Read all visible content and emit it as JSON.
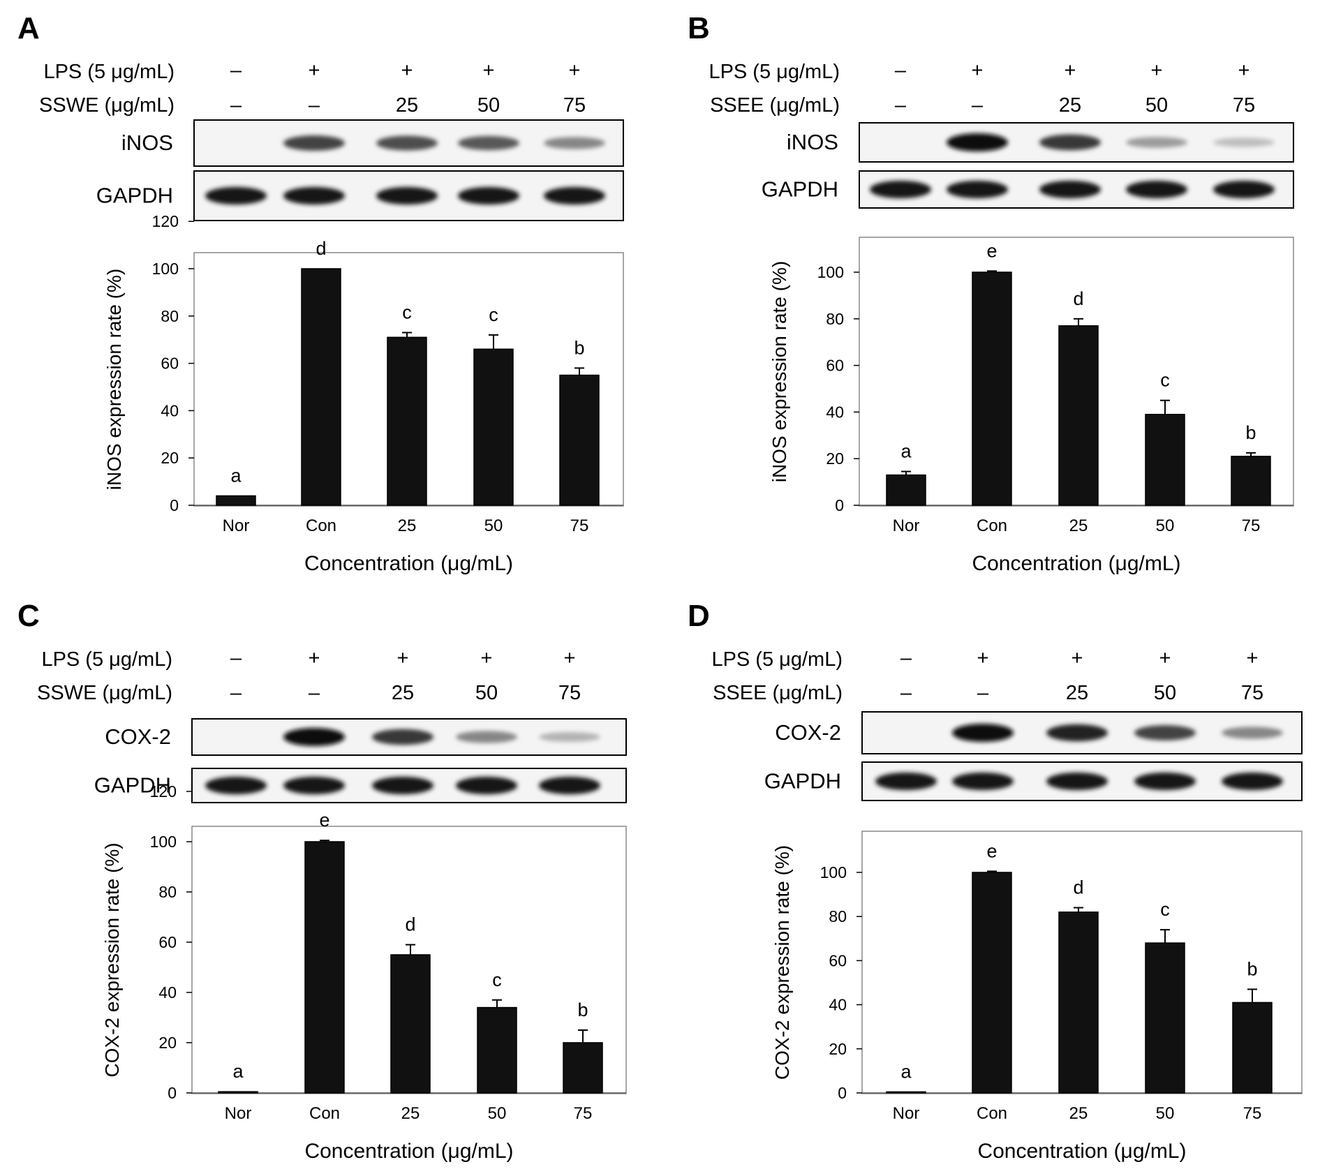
{
  "figure": {
    "panels": [
      {
        "letter": "A",
        "lps_label": "LPS (5 μg/mL)",
        "lps_signs": [
          "–",
          "+",
          "+",
          "+",
          "+"
        ],
        "extract_label": "SSWE (μg/mL)",
        "extract_signs": [
          "–",
          "–",
          "25",
          "50",
          "75"
        ],
        "blots": [
          {
            "name": "iNOS",
            "intensity": [
              0.0,
              0.75,
              0.7,
              0.65,
              0.45
            ]
          },
          {
            "name": "GAPDH",
            "intensity": [
              0.95,
              0.95,
              0.95,
              0.95,
              0.95
            ]
          }
        ]
      },
      {
        "letter": "B",
        "lps_label": "LPS (5 μg/mL)",
        "lps_signs": [
          "–",
          "+",
          "+",
          "+",
          "+"
        ],
        "extract_label": "SSEE (μg/mL)",
        "extract_signs": [
          "–",
          "–",
          "25",
          "50",
          "75"
        ],
        "blots": [
          {
            "name": "iNOS",
            "intensity": [
              0.0,
              1.0,
              0.8,
              0.35,
              0.2
            ]
          },
          {
            "name": "GAPDH",
            "intensity": [
              0.95,
              0.95,
              0.95,
              0.95,
              0.95
            ]
          }
        ]
      },
      {
        "letter": "C",
        "lps_label": "LPS (5 μg/mL)",
        "lps_signs": [
          "–",
          "+",
          "+",
          "+",
          "+"
        ],
        "extract_label": "SSWE (μg/mL)",
        "extract_signs": [
          "–",
          "–",
          "25",
          "50",
          "75"
        ],
        "blots": [
          {
            "name": "COX-2",
            "intensity": [
              0.0,
              1.0,
              0.8,
              0.45,
              0.25
            ]
          },
          {
            "name": "GAPDH",
            "intensity": [
              0.95,
              0.95,
              0.95,
              0.95,
              0.95
            ]
          }
        ]
      },
      {
        "letter": "D",
        "lps_label": "LPS (5 μg/mL)",
        "lps_signs": [
          "–",
          "+",
          "+",
          "+",
          "+"
        ],
        "extract_label": "SSEE (μg/mL)",
        "extract_signs": [
          "–",
          "–",
          "25",
          "50",
          "75"
        ],
        "blots": [
          {
            "name": "COX-2",
            "intensity": [
              0.0,
              1.0,
              0.9,
              0.75,
              0.45
            ]
          },
          {
            "name": "GAPDH",
            "intensity": [
              0.95,
              0.95,
              0.95,
              0.95,
              0.95
            ]
          }
        ]
      }
    ]
  },
  "chart_data": [
    {
      "panel": "A",
      "type": "bar",
      "categories": [
        "Nor",
        "Con",
        "25",
        "50",
        "75"
      ],
      "values": [
        4,
        100,
        71,
        66,
        55
      ],
      "errors": [
        0,
        0,
        2,
        6,
        3
      ],
      "letters": [
        "a",
        "d",
        "c",
        "c",
        "b"
      ],
      "xlabel": "Concentration (μg/mL)",
      "ylabel": "iNOS expression rate (%)",
      "ylim": [
        0,
        120
      ],
      "yticks": [
        0,
        20,
        40,
        60,
        80,
        100,
        120
      ]
    },
    {
      "panel": "B",
      "type": "bar",
      "categories": [
        "Nor",
        "Con",
        "25",
        "50",
        "75"
      ],
      "values": [
        13,
        100,
        77,
        39,
        21
      ],
      "errors": [
        1.5,
        0.5,
        3,
        6,
        1.5
      ],
      "letters": [
        "a",
        "e",
        "d",
        "c",
        "b"
      ],
      "xlabel": "Concentration (μg/mL)",
      "ylabel": "iNOS expression rate (%)",
      "ylim": [
        0,
        110
      ],
      "yticks": [
        0,
        20,
        40,
        60,
        80,
        100
      ]
    },
    {
      "panel": "C",
      "type": "bar",
      "categories": [
        "Nor",
        "Con",
        "25",
        "50",
        "75"
      ],
      "values": [
        0.5,
        100,
        55,
        34,
        20
      ],
      "errors": [
        0,
        0.5,
        4,
        3,
        5
      ],
      "letters": [
        "a",
        "e",
        "d",
        "c",
        "b"
      ],
      "xlabel": "Concentration (μg/mL)",
      "ylabel": "COX-2 expression rate (%)",
      "ylim": [
        0,
        120
      ],
      "yticks": [
        0,
        20,
        40,
        60,
        80,
        100,
        120
      ]
    },
    {
      "panel": "D",
      "type": "bar",
      "categories": [
        "Nor",
        "Con",
        "25",
        "50",
        "75"
      ],
      "values": [
        0.5,
        100,
        82,
        68,
        41
      ],
      "errors": [
        0,
        0.5,
        2,
        6,
        6
      ],
      "letters": [
        "a",
        "e",
        "d",
        "c",
        "b"
      ],
      "xlabel": "Concentration (μg/mL)",
      "ylabel": "COX-2 expression rate (%)",
      "ylim": [
        0,
        110
      ],
      "yticks": [
        0,
        20,
        40,
        60,
        80,
        100
      ]
    }
  ]
}
